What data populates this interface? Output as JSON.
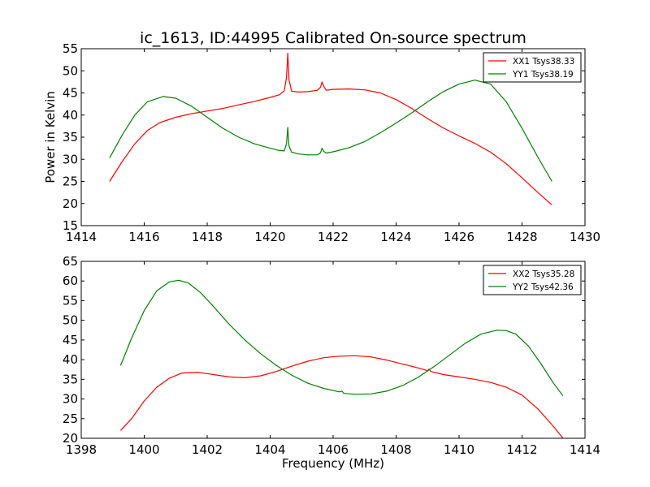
{
  "figure": {
    "title": "ic_1613, ID:44995 Calibrated On-source spectrum",
    "ylabel": "Power in Kelvin",
    "xlabel": "Frequency (MHz)"
  },
  "chart_data": [
    {
      "type": "line",
      "title": "ic_1613, ID:44995 Calibrated On-source spectrum",
      "ylabel": "Power in Kelvin",
      "xlabel": "",
      "xlim": [
        1414,
        1430
      ],
      "ylim": [
        15,
        55
      ],
      "xticks": [
        "1414",
        "1416",
        "1418",
        "1420",
        "1422",
        "1424",
        "1426",
        "1428",
        "1430"
      ],
      "yticks": [
        "15",
        "20",
        "25",
        "30",
        "35",
        "40",
        "45",
        "50",
        "55"
      ],
      "legend": "top-right",
      "grid": false,
      "series": [
        {
          "name": "XX1 Tsys38.33",
          "color": "#ff0000",
          "x": [
            1414.9,
            1415.3,
            1415.7,
            1416.1,
            1416.5,
            1417.0,
            1417.5,
            1418.0,
            1418.5,
            1419.0,
            1419.5,
            1420.0,
            1420.3,
            1420.45,
            1420.52,
            1420.56,
            1420.6,
            1420.68,
            1420.9,
            1421.2,
            1421.5,
            1421.6,
            1421.65,
            1421.7,
            1421.78,
            1422.0,
            1422.5,
            1423.0,
            1423.5,
            1424.0,
            1424.5,
            1425.0,
            1425.5,
            1426.0,
            1426.5,
            1427.0,
            1427.5,
            1428.0,
            1428.5,
            1428.95
          ],
          "y": [
            25.0,
            29.5,
            33.5,
            36.5,
            38.3,
            39.5,
            40.3,
            40.9,
            41.5,
            42.3,
            43.1,
            44.0,
            44.6,
            45.5,
            48.5,
            54.0,
            48.0,
            45.4,
            45.2,
            45.3,
            45.6,
            46.3,
            47.5,
            46.5,
            45.6,
            45.8,
            45.9,
            45.7,
            45.0,
            43.5,
            41.5,
            39.2,
            37.1,
            35.3,
            33.6,
            31.6,
            29.0,
            25.8,
            22.5,
            19.7
          ]
        },
        {
          "name": "YY1 Tsys38.19",
          "color": "#008000",
          "x": [
            1414.9,
            1415.3,
            1415.7,
            1416.1,
            1416.6,
            1417.0,
            1417.5,
            1418.0,
            1418.5,
            1419.0,
            1419.5,
            1420.0,
            1420.3,
            1420.45,
            1420.52,
            1420.56,
            1420.6,
            1420.68,
            1420.9,
            1421.2,
            1421.5,
            1421.6,
            1421.65,
            1421.7,
            1421.78,
            1422.0,
            1422.5,
            1423.0,
            1423.5,
            1424.0,
            1424.5,
            1425.0,
            1425.5,
            1426.0,
            1426.5,
            1427.0,
            1427.5,
            1428.0,
            1428.5,
            1428.95
          ],
          "y": [
            30.3,
            35.5,
            40.0,
            43.0,
            44.2,
            43.8,
            42.0,
            39.5,
            37.0,
            35.0,
            33.5,
            32.5,
            32.0,
            31.9,
            33.5,
            37.2,
            33.0,
            31.6,
            31.2,
            31.0,
            31.0,
            31.5,
            32.5,
            31.8,
            31.4,
            31.7,
            32.6,
            34.0,
            36.0,
            38.2,
            40.5,
            43.0,
            45.3,
            47.0,
            47.9,
            47.0,
            43.0,
            37.0,
            30.5,
            25.0
          ]
        }
      ]
    },
    {
      "type": "line",
      "title": "",
      "ylabel": "",
      "xlabel": "Frequency (MHz)",
      "xlim": [
        1398,
        1414
      ],
      "ylim": [
        20,
        65
      ],
      "xticks": [
        "1398",
        "1400",
        "1402",
        "1404",
        "1406",
        "1408",
        "1410",
        "1412",
        "1414"
      ],
      "yticks": [
        "20",
        "25",
        "30",
        "35",
        "40",
        "45",
        "50",
        "55",
        "60",
        "65"
      ],
      "legend": "top-right",
      "grid": false,
      "series": [
        {
          "name": "XX2 Tsys35.28",
          "color": "#ff0000",
          "x": [
            1399.25,
            1399.6,
            1400.0,
            1400.4,
            1400.8,
            1401.2,
            1401.7,
            1402.2,
            1402.7,
            1403.2,
            1403.7,
            1404.2,
            1404.7,
            1405.2,
            1405.7,
            1406.2,
            1406.7,
            1407.2,
            1407.7,
            1408.2,
            1408.7,
            1409.0,
            1409.05,
            1409.1,
            1409.5,
            1410.0,
            1410.5,
            1411.0,
            1411.5,
            1412.0,
            1412.5,
            1413.0,
            1413.3
          ],
          "y": [
            22.0,
            25.0,
            29.5,
            33.0,
            35.3,
            36.6,
            36.8,
            36.2,
            35.6,
            35.4,
            35.9,
            37.0,
            38.4,
            39.6,
            40.5,
            40.9,
            41.0,
            40.7,
            39.9,
            38.9,
            37.9,
            37.2,
            37.6,
            37.0,
            36.2,
            35.6,
            35.0,
            34.2,
            33.0,
            31.0,
            27.5,
            23.0,
            20.0
          ]
        },
        {
          "name": "YY2 Tsys42.36",
          "color": "#008000",
          "x": [
            1399.25,
            1399.6,
            1400.0,
            1400.4,
            1400.8,
            1401.1,
            1401.4,
            1401.8,
            1402.2,
            1402.7,
            1403.2,
            1403.7,
            1404.2,
            1404.7,
            1405.2,
            1405.7,
            1406.2,
            1406.28,
            1406.33,
            1406.4,
            1406.7,
            1407.2,
            1407.7,
            1408.2,
            1408.7,
            1409.2,
            1409.7,
            1410.2,
            1410.7,
            1411.2,
            1411.5,
            1411.8,
            1412.2,
            1412.6,
            1413.0,
            1413.3
          ],
          "y": [
            38.5,
            45.5,
            52.5,
            57.5,
            59.8,
            60.2,
            59.5,
            57.0,
            53.5,
            49.0,
            45.0,
            41.5,
            38.5,
            36.0,
            34.0,
            32.7,
            31.8,
            32.0,
            31.5,
            31.4,
            31.2,
            31.3,
            32.0,
            33.4,
            35.5,
            38.2,
            41.2,
            44.2,
            46.5,
            47.5,
            47.4,
            46.5,
            43.5,
            39.0,
            34.0,
            30.8
          ]
        }
      ]
    }
  ]
}
